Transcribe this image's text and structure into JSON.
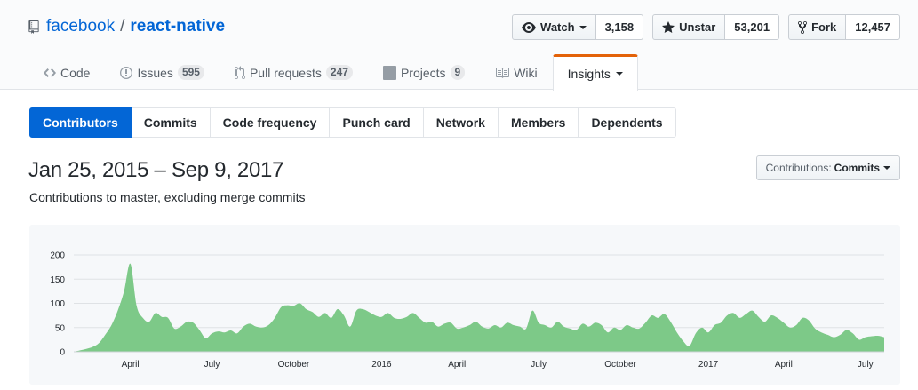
{
  "repo": {
    "owner": "facebook",
    "separator": "/",
    "name": "react-native",
    "icon": "repo-book-icon"
  },
  "actions": {
    "watch": {
      "label": "Watch",
      "count": "3,158",
      "icon": "eye-icon"
    },
    "unstar": {
      "label": "Unstar",
      "count": "53,201",
      "icon": "star-icon"
    },
    "fork": {
      "label": "Fork",
      "count": "12,457",
      "icon": "fork-icon"
    }
  },
  "reponav": {
    "code": {
      "label": "Code"
    },
    "issues": {
      "label": "Issues",
      "count": "595"
    },
    "pulls": {
      "label": "Pull requests",
      "count": "247"
    },
    "projects": {
      "label": "Projects",
      "count": "9"
    },
    "wiki": {
      "label": "Wiki"
    },
    "insights": {
      "label": "Insights"
    }
  },
  "subnav": [
    "Contributors",
    "Commits",
    "Code frequency",
    "Punch card",
    "Network",
    "Members",
    "Dependents"
  ],
  "range": {
    "title": "Jan 25, 2015 – Sep 9, 2017",
    "subtitle": "Contributions to master, excluding merge commits"
  },
  "contributions_select": {
    "label": "Contributions:",
    "value": "Commits"
  },
  "colors": {
    "accent": "#0366d6",
    "area_fill": "#7dc988",
    "insights_border": "#e36209"
  },
  "chart_data": {
    "type": "area",
    "title": "",
    "xlabel": "",
    "ylabel": "",
    "ylim": [
      0,
      200
    ],
    "yticks": [
      0,
      50,
      100,
      150,
      200
    ],
    "grid": true,
    "x_tick_labels": [
      {
        "label": "April",
        "week": 9
      },
      {
        "label": "July",
        "week": 22
      },
      {
        "label": "October",
        "week": 35
      },
      {
        "label": "2016",
        "week": 49
      },
      {
        "label": "April",
        "week": 61
      },
      {
        "label": "July",
        "week": 74
      },
      {
        "label": "October",
        "week": 87
      },
      {
        "label": "2017",
        "week": 101
      },
      {
        "label": "April",
        "week": 113
      },
      {
        "label": "July",
        "week": 126
      }
    ],
    "series": [
      {
        "values": [
          0,
          3,
          6,
          10,
          18,
          35,
          55,
          85,
          125,
          182,
          95,
          70,
          62,
          80,
          72,
          70,
          48,
          52,
          62,
          60,
          45,
          28,
          38,
          42,
          40,
          44,
          38,
          52,
          58,
          52,
          50,
          55,
          70,
          92,
          96,
          95,
          100,
          88,
          82,
          72,
          80,
          70,
          88,
          75,
          52,
          85,
          88,
          82,
          75,
          72,
          80,
          70,
          68,
          72,
          80,
          70,
          60,
          62,
          52,
          58,
          60,
          48,
          50,
          55,
          62,
          52,
          48,
          55,
          50,
          60,
          55,
          52,
          48,
          85,
          60,
          55,
          50,
          62,
          52,
          48,
          45,
          58,
          52,
          60,
          55,
          40,
          50,
          45,
          55,
          50,
          48,
          60,
          75,
          70,
          78,
          62,
          40,
          22,
          12,
          38,
          50,
          40,
          55,
          60,
          75,
          80,
          70,
          78,
          85,
          72,
          62,
          75,
          70,
          60,
          50,
          55,
          70,
          65,
          48,
          40,
          35,
          30,
          35,
          45,
          38,
          25,
          30,
          32,
          33,
          30
        ]
      }
    ]
  }
}
